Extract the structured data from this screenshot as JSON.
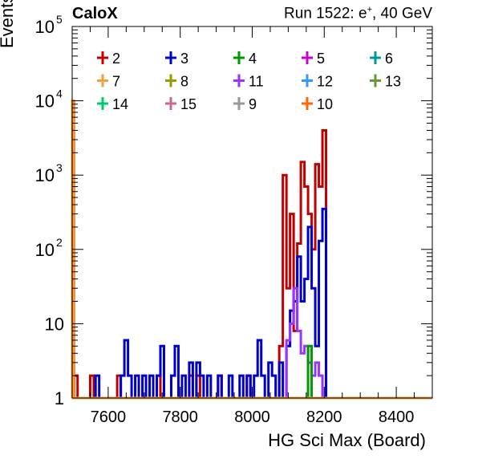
{
  "header": {
    "left": "CaloX",
    "right_prefix": "Run 1522: e",
    "right_sup": "+",
    "right_suffix": ", 40 GeV"
  },
  "chart_data": {
    "type": "histogram",
    "xlabel": "HG Sci Max (Board)",
    "ylabel": "Events",
    "xlim": [
      7500,
      8500
    ],
    "ylim": [
      1,
      100000
    ],
    "log_y": true,
    "grid": false,
    "legend_position": "top",
    "x_ticks": [
      "7600",
      "7800",
      "8000",
      "8200",
      "8400"
    ],
    "y_ticks": [
      {
        "value": 1,
        "base": "1",
        "exp": ""
      },
      {
        "value": 10,
        "base": "10",
        "exp": ""
      },
      {
        "value": 100,
        "base": "10",
        "exp": "2"
      },
      {
        "value": 1000,
        "base": "10",
        "exp": "3"
      },
      {
        "value": 10000,
        "base": "10",
        "exp": "4"
      },
      {
        "value": 100000,
        "base": "10",
        "exp": "5"
      }
    ],
    "legend": [
      {
        "label": "2",
        "color": "#c00000"
      },
      {
        "label": "3",
        "color": "#0000cc"
      },
      {
        "label": "4",
        "color": "#009900"
      },
      {
        "label": "5",
        "color": "#cc00cc"
      },
      {
        "label": "6",
        "color": "#009999"
      },
      {
        "label": "7",
        "color": "#f5a040"
      },
      {
        "label": "8",
        "color": "#999900"
      },
      {
        "label": "11",
        "color": "#9933ff"
      },
      {
        "label": "12",
        "color": "#3399ff"
      },
      {
        "label": "13",
        "color": "#669933"
      },
      {
        "label": "14",
        "color": "#00cc66"
      },
      {
        "label": "15",
        "color": "#cc6699"
      },
      {
        "label": "9",
        "color": "#999999"
      },
      {
        "label": "10",
        "color": "#ff6600"
      }
    ],
    "series": [
      {
        "name": "2",
        "color": "#c00000",
        "bins": [
          [
            7500,
            7505,
            1
          ],
          [
            7505,
            7515,
            2
          ],
          [
            7515,
            7550,
            1
          ],
          [
            7550,
            7560,
            2
          ],
          [
            7560,
            7625,
            1
          ],
          [
            7625,
            7635,
            2
          ],
          [
            7635,
            7735,
            1
          ],
          [
            7735,
            7745,
            2
          ],
          [
            7745,
            7825,
            1
          ],
          [
            7825,
            7835,
            2
          ],
          [
            7835,
            7845,
            1
          ],
          [
            7845,
            7855,
            2
          ],
          [
            7855,
            7905,
            1
          ],
          [
            7905,
            7915,
            2
          ],
          [
            7915,
            7985,
            1
          ],
          [
            7985,
            7995,
            2
          ],
          [
            7995,
            8075,
            1
          ],
          [
            8075,
            8085,
            5
          ],
          [
            8085,
            8095,
            1000
          ],
          [
            8095,
            8105,
            30
          ],
          [
            8105,
            8115,
            300
          ],
          [
            8115,
            8125,
            8
          ],
          [
            8125,
            8135,
            120
          ],
          [
            8135,
            8145,
            1500
          ],
          [
            8145,
            8155,
            700
          ],
          [
            8155,
            8165,
            300
          ],
          [
            8165,
            8175,
            100
          ],
          [
            8175,
            8185,
            1400
          ],
          [
            8185,
            8195,
            700
          ],
          [
            8195,
            8205,
            4000
          ],
          [
            8205,
            8500,
            1
          ]
        ]
      },
      {
        "name": "3",
        "color": "#0000cc",
        "bins": [
          [
            7500,
            7565,
            1
          ],
          [
            7565,
            7575,
            2
          ],
          [
            7575,
            7635,
            1
          ],
          [
            7635,
            7645,
            2
          ],
          [
            7645,
            7655,
            6
          ],
          [
            7655,
            7665,
            2
          ],
          [
            7665,
            7675,
            1
          ],
          [
            7675,
            7685,
            2
          ],
          [
            7685,
            7695,
            1
          ],
          [
            7695,
            7705,
            2
          ],
          [
            7705,
            7715,
            1
          ],
          [
            7715,
            7725,
            2
          ],
          [
            7725,
            7735,
            1
          ],
          [
            7735,
            7745,
            2
          ],
          [
            7745,
            7755,
            5
          ],
          [
            7755,
            7775,
            1
          ],
          [
            7775,
            7785,
            2
          ],
          [
            7785,
            7795,
            5
          ],
          [
            7795,
            7805,
            1
          ],
          [
            7805,
            7815,
            2
          ],
          [
            7815,
            7825,
            1
          ],
          [
            7825,
            7835,
            3
          ],
          [
            7835,
            7845,
            1
          ],
          [
            7845,
            7855,
            3
          ],
          [
            7855,
            7865,
            2
          ],
          [
            7865,
            7875,
            1
          ],
          [
            7875,
            7885,
            2
          ],
          [
            7885,
            7905,
            1
          ],
          [
            7905,
            7915,
            2
          ],
          [
            7915,
            7935,
            1
          ],
          [
            7935,
            7945,
            2
          ],
          [
            7945,
            7965,
            1
          ],
          [
            7965,
            7975,
            2
          ],
          [
            7975,
            7985,
            1
          ],
          [
            7985,
            7995,
            2
          ],
          [
            7995,
            8005,
            1
          ],
          [
            8005,
            8015,
            2
          ],
          [
            8015,
            8025,
            6
          ],
          [
            8025,
            8035,
            2
          ],
          [
            8035,
            8045,
            1
          ],
          [
            8045,
            8055,
            3
          ],
          [
            8055,
            8065,
            2
          ],
          [
            8065,
            8075,
            1
          ],
          [
            8075,
            8085,
            3
          ],
          [
            8085,
            8095,
            1
          ],
          [
            8095,
            8105,
            5
          ],
          [
            8105,
            8115,
            15
          ],
          [
            8115,
            8125,
            20
          ],
          [
            8125,
            8135,
            80
          ],
          [
            8135,
            8145,
            20
          ],
          [
            8145,
            8155,
            40
          ],
          [
            8155,
            8165,
            200
          ],
          [
            8165,
            8175,
            30
          ],
          [
            8175,
            8185,
            5
          ],
          [
            8185,
            8195,
            130
          ],
          [
            8195,
            8205,
            350
          ],
          [
            8205,
            8500,
            1
          ]
        ]
      },
      {
        "name": "11",
        "color": "#9933ff",
        "bins": [
          [
            7500,
            8095,
            1
          ],
          [
            8095,
            8105,
            6
          ],
          [
            8105,
            8115,
            10
          ],
          [
            8115,
            8125,
            30
          ],
          [
            8125,
            8135,
            8
          ],
          [
            8135,
            8145,
            4
          ],
          [
            8145,
            8155,
            5
          ],
          [
            8155,
            8165,
            3
          ],
          [
            8165,
            8175,
            2
          ],
          [
            8175,
            8185,
            3
          ],
          [
            8185,
            8195,
            2
          ],
          [
            8195,
            8205,
            1
          ],
          [
            8205,
            8500,
            1
          ]
        ]
      },
      {
        "name": "4",
        "color": "#009900",
        "bins": [
          [
            7500,
            8155,
            1
          ],
          [
            8155,
            8165,
            5
          ],
          [
            8165,
            8500,
            1
          ]
        ]
      },
      {
        "name": "10",
        "color": "#ff6600",
        "bins": [
          [
            7500,
            7505,
            10000
          ],
          [
            7505,
            8500,
            1
          ]
        ]
      },
      {
        "name": "7",
        "color": "#f5a040",
        "bins": [
          [
            7500,
            7503,
            10000
          ],
          [
            7503,
            8500,
            1
          ]
        ]
      }
    ]
  }
}
